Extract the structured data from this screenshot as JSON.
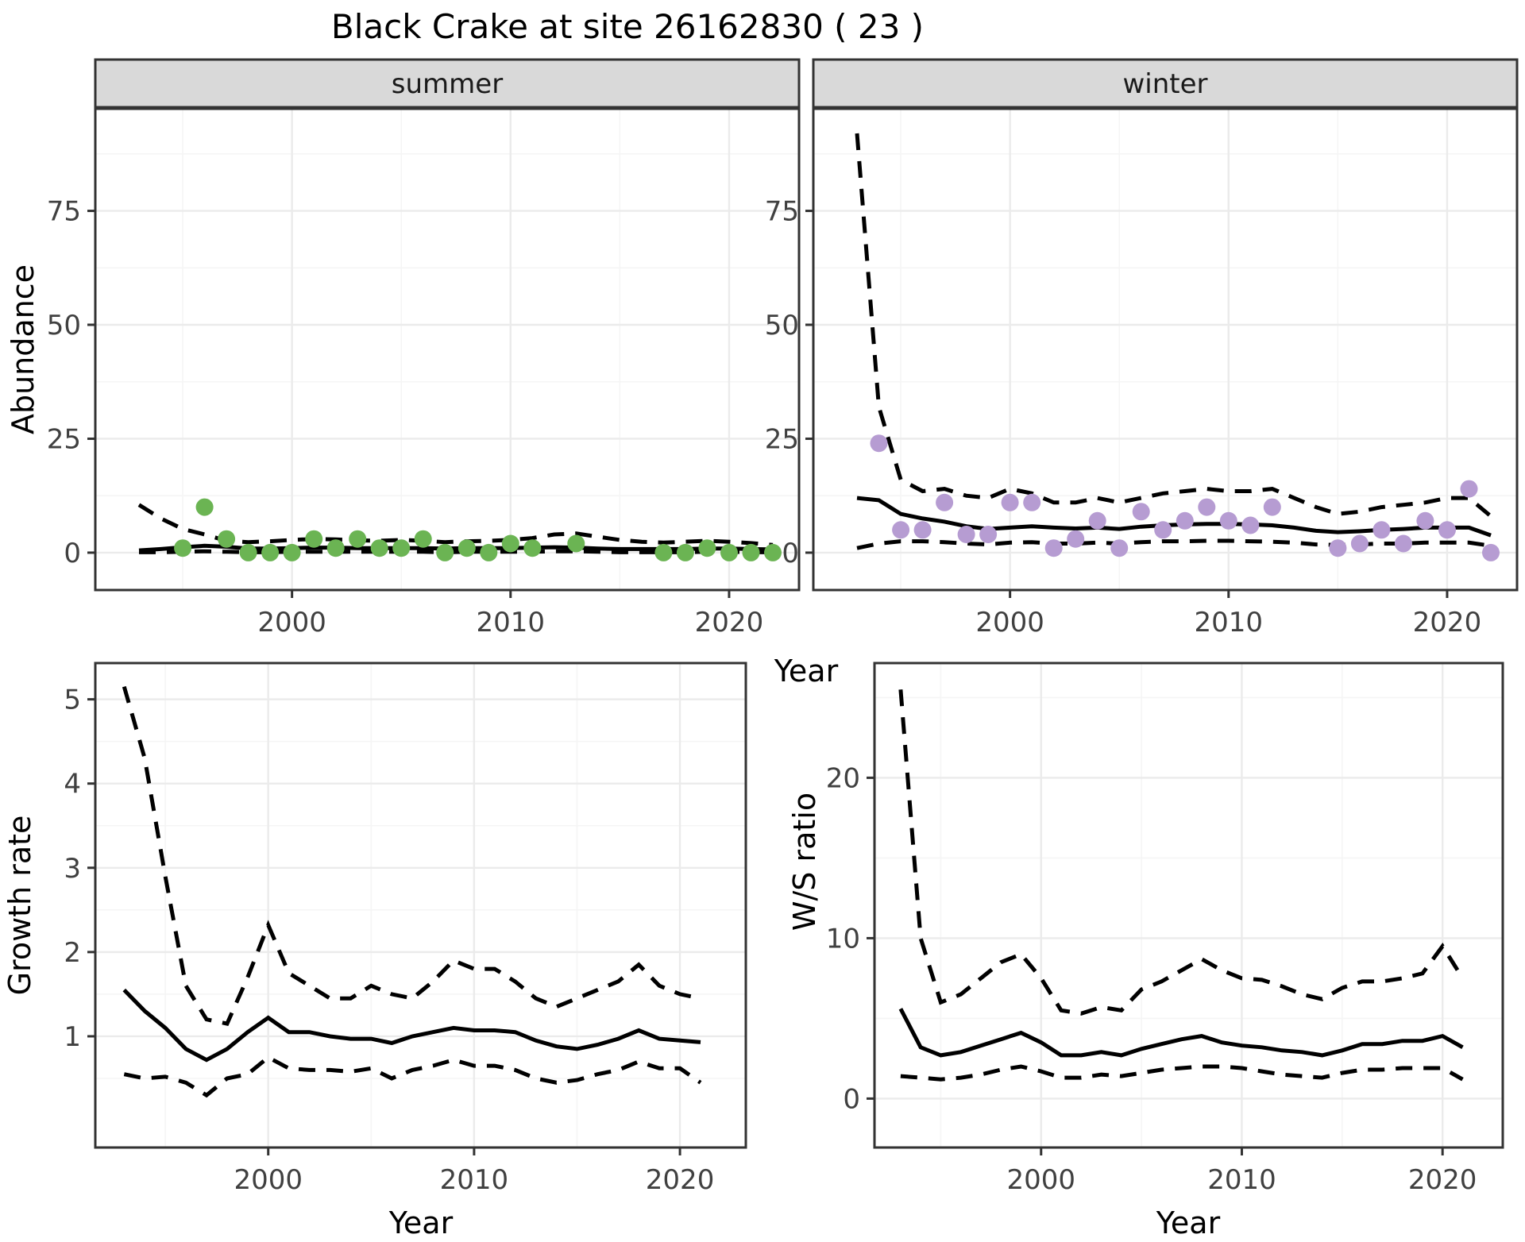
{
  "title": "Black Crake at site 26162830 ( 23 )",
  "axes": {
    "y_label_top": "Abundance",
    "x_label_top": "Year",
    "y_label_growth": "Growth rate",
    "x_label_growth": "Year",
    "y_label_ws": "W/S ratio",
    "x_label_ws": "Year"
  },
  "colors": {
    "summer_point": "#6BB453",
    "winter_point": "#B69CD2",
    "line": "#000000",
    "panel_border": "#333333",
    "strip_bg": "#D9D9D9",
    "grid_major": "#EBEBEB",
    "grid_minor": "#F5F5F5",
    "tick_text": "#404040"
  },
  "chart_data": [
    {
      "id": "summer",
      "type": "line+scatter",
      "strip_label": "summer",
      "xlabel": "Year",
      "ylabel": "Abundance",
      "xlim": [
        1991.0,
        2023.2
      ],
      "ylim": [
        -8.2,
        97.4
      ],
      "xticks": {
        "values": [
          2000,
          2010,
          2020
        ],
        "labels": [
          "2000",
          "2010",
          "2020"
        ]
      },
      "xminor": [
        1995,
        2005,
        2015
      ],
      "yticks": {
        "values": [
          0,
          25,
          50,
          75
        ],
        "labels": [
          "0",
          "25",
          "50",
          "75"
        ]
      },
      "yminor": [
        12.5,
        37.5,
        62.5,
        87.5
      ],
      "series": [
        {
          "name": "mean",
          "style": "solid",
          "x": [
            1993,
            1994,
            1995,
            1996,
            1997,
            1998,
            1999,
            2000,
            2001,
            2002,
            2003,
            2004,
            2005,
            2006,
            2007,
            2008,
            2009,
            2010,
            2011,
            2012,
            2013,
            2014,
            2015,
            2016,
            2017,
            2018,
            2019,
            2020,
            2021,
            2022
          ],
          "y": [
            0.5,
            0.8,
            1.2,
            1.5,
            1.3,
            0.9,
            0.9,
            1.0,
            1.1,
            1.1,
            1.0,
            1.0,
            1.0,
            1.0,
            0.9,
            1.0,
            1.0,
            1.0,
            1.1,
            1.2,
            1.1,
            0.9,
            0.8,
            0.8,
            0.8,
            0.8,
            0.9,
            0.9,
            0.8,
            0.7
          ]
        },
        {
          "name": "upper_ci",
          "style": "dashed",
          "x": [
            1993,
            1994,
            1995,
            1996,
            1997,
            1998,
            1999,
            2000,
            2001,
            2002,
            2003,
            2004,
            2005,
            2006,
            2007,
            2008,
            2009,
            2010,
            2011,
            2012,
            2013,
            2014,
            2015,
            2016,
            2017,
            2018,
            2019,
            2020,
            2021,
            2022
          ],
          "y": [
            10.5,
            7.5,
            5.2,
            4.0,
            2.6,
            2.3,
            2.5,
            2.8,
            3.0,
            2.9,
            2.7,
            2.6,
            2.8,
            2.6,
            2.3,
            2.5,
            2.6,
            2.8,
            3.2,
            4.0,
            4.2,
            3.5,
            2.8,
            2.4,
            2.2,
            2.4,
            2.6,
            2.4,
            2.1,
            1.7
          ]
        },
        {
          "name": "lower_ci",
          "style": "dashed",
          "x": [
            1993,
            1994,
            1995,
            1996,
            1997,
            1998,
            1999,
            2000,
            2001,
            2002,
            2003,
            2004,
            2005,
            2006,
            2007,
            2008,
            2009,
            2010,
            2011,
            2012,
            2013,
            2014,
            2015,
            2016,
            2017,
            2018,
            2019,
            2020,
            2021,
            2022
          ],
          "y": [
            0.1,
            0.1,
            0.2,
            0.3,
            0.2,
            0.1,
            0.1,
            0.2,
            0.2,
            0.2,
            0.2,
            0.2,
            0.2,
            0.2,
            0.1,
            0.2,
            0.2,
            0.2,
            0.2,
            0.3,
            0.3,
            0.2,
            0.1,
            0.1,
            0.1,
            0.1,
            0.2,
            0.2,
            0.1,
            0.1
          ]
        }
      ],
      "points": {
        "color_key": "summer_point",
        "x": [
          1995,
          1996,
          1997,
          1998,
          1999,
          2000,
          2001,
          2002,
          2003,
          2004,
          2005,
          2006,
          2007,
          2008,
          2009,
          2010,
          2011,
          2013,
          2017,
          2018,
          2019,
          2020,
          2021,
          2022
        ],
        "y": [
          1,
          10,
          3,
          0,
          0,
          0,
          3,
          1,
          3,
          1,
          1,
          3,
          0,
          1,
          0,
          2,
          1,
          2,
          0,
          0,
          1,
          0,
          0,
          0
        ]
      }
    },
    {
      "id": "winter",
      "type": "line+scatter",
      "strip_label": "winter",
      "xlabel": "Year",
      "ylabel": "Abundance",
      "xlim": [
        1991.0,
        2023.2
      ],
      "ylim": [
        -8.2,
        97.4
      ],
      "xticks": {
        "values": [
          2000,
          2010,
          2020
        ],
        "labels": [
          "2000",
          "2010",
          "2020"
        ]
      },
      "xminor": [
        1995,
        2005,
        2015
      ],
      "yticks": {
        "values": [
          0,
          25,
          50,
          75
        ],
        "labels": [
          "0",
          "25",
          "50",
          "75"
        ]
      },
      "yminor": [
        12.5,
        37.5,
        62.5,
        87.5
      ],
      "series": [
        {
          "name": "mean",
          "style": "solid",
          "x": [
            1993,
            1994,
            1995,
            1996,
            1997,
            1998,
            1999,
            2000,
            2001,
            2002,
            2003,
            2004,
            2005,
            2006,
            2007,
            2008,
            2009,
            2010,
            2011,
            2012,
            2013,
            2014,
            2015,
            2016,
            2017,
            2018,
            2019,
            2020,
            2021,
            2022
          ],
          "y": [
            12.0,
            11.5,
            8.5,
            7.5,
            6.8,
            5.8,
            5.2,
            5.5,
            5.8,
            5.5,
            5.3,
            5.5,
            5.2,
            5.7,
            6.0,
            6.2,
            6.3,
            6.3,
            6.2,
            6.0,
            5.5,
            4.8,
            4.5,
            4.7,
            5.0,
            5.2,
            5.5,
            5.5,
            5.5,
            3.8
          ]
        },
        {
          "name": "upper_ci",
          "style": "dashed",
          "x": [
            1993,
            1994,
            1995,
            1996,
            1997,
            1998,
            1999,
            2000,
            2001,
            2002,
            2003,
            2004,
            2005,
            2006,
            2007,
            2008,
            2009,
            2010,
            2011,
            2012,
            2013,
            2014,
            2015,
            2016,
            2017,
            2018,
            2019,
            2020,
            2021,
            2022
          ],
          "y": [
            92,
            32,
            16,
            13.5,
            14,
            12.5,
            12,
            14,
            13,
            11,
            11,
            12,
            11,
            12,
            13,
            13.5,
            14,
            13.5,
            13.5,
            14,
            12,
            10,
            8.5,
            9,
            10,
            10.5,
            11,
            12,
            12,
            8
          ]
        },
        {
          "name": "lower_ci",
          "style": "dashed",
          "x": [
            1993,
            1994,
            1995,
            1996,
            1997,
            1998,
            1999,
            2000,
            2001,
            2002,
            2003,
            2004,
            2005,
            2006,
            2007,
            2008,
            2009,
            2010,
            2011,
            2012,
            2013,
            2014,
            2015,
            2016,
            2017,
            2018,
            2019,
            2020,
            2021,
            2022
          ],
          "y": [
            1.0,
            2.0,
            2.5,
            2.5,
            2.3,
            2.0,
            1.8,
            2.2,
            2.3,
            2.0,
            2.0,
            2.2,
            2.0,
            2.3,
            2.5,
            2.5,
            2.6,
            2.6,
            2.5,
            2.4,
            2.2,
            1.8,
            1.7,
            1.8,
            2.0,
            2.0,
            2.2,
            2.2,
            2.2,
            1.5
          ]
        }
      ],
      "points": {
        "color_key": "winter_point",
        "x": [
          1994,
          1995,
          1996,
          1997,
          1998,
          1999,
          2000,
          2001,
          2002,
          2003,
          2004,
          2005,
          2006,
          2007,
          2008,
          2009,
          2010,
          2011,
          2012,
          2015,
          2016,
          2017,
          2018,
          2019,
          2020,
          2021,
          2022
        ],
        "y": [
          24,
          5,
          5,
          11,
          4,
          4,
          11,
          11,
          1,
          3,
          7,
          1,
          9,
          5,
          7,
          10,
          7,
          6,
          10,
          1,
          2,
          5,
          2,
          7,
          5,
          14,
          0
        ]
      }
    },
    {
      "id": "growth",
      "type": "line",
      "xlabel": "Year",
      "ylabel": "Growth rate",
      "xlim": [
        1991.6,
        2023.2
      ],
      "ylim": [
        -0.32,
        5.43
      ],
      "xticks": {
        "values": [
          2000,
          2010,
          2020
        ],
        "labels": [
          "2000",
          "2010",
          "2020"
        ]
      },
      "xminor": [
        1995,
        2005,
        2015
      ],
      "yticks": {
        "values": [
          1,
          2,
          3,
          4,
          5
        ],
        "labels": [
          "1",
          "2",
          "3",
          "4",
          "5"
        ]
      },
      "yminor": [
        0.5,
        1.5,
        2.5,
        3.5,
        4.5
      ],
      "series": [
        {
          "name": "mean",
          "style": "solid",
          "x": [
            1993,
            1994,
            1995,
            1996,
            1997,
            1998,
            1999,
            2000,
            2001,
            2002,
            2003,
            2004,
            2005,
            2006,
            2007,
            2008,
            2009,
            2010,
            2011,
            2012,
            2013,
            2014,
            2015,
            2016,
            2017,
            2018,
            2019,
            2020,
            2021
          ],
          "y": [
            1.55,
            1.3,
            1.1,
            0.85,
            0.72,
            0.85,
            1.05,
            1.22,
            1.05,
            1.05,
            1.0,
            0.97,
            0.97,
            0.92,
            1.0,
            1.05,
            1.1,
            1.07,
            1.07,
            1.05,
            0.95,
            0.88,
            0.85,
            0.9,
            0.97,
            1.07,
            0.97,
            0.95,
            0.93
          ]
        },
        {
          "name": "upper_ci",
          "style": "dashed",
          "x": [
            1993,
            1994,
            1995,
            1996,
            1997,
            1998,
            1999,
            2000,
            2001,
            2002,
            2003,
            2004,
            2005,
            2006,
            2007,
            2008,
            2009,
            2010,
            2011,
            2012,
            2013,
            2014,
            2015,
            2016,
            2017,
            2018,
            2019,
            2020,
            2021
          ],
          "y": [
            5.15,
            4.3,
            2.9,
            1.6,
            1.2,
            1.15,
            1.7,
            2.32,
            1.75,
            1.6,
            1.45,
            1.45,
            1.6,
            1.5,
            1.45,
            1.65,
            1.9,
            1.8,
            1.8,
            1.65,
            1.45,
            1.35,
            1.45,
            1.55,
            1.65,
            1.85,
            1.6,
            1.5,
            1.45
          ]
        },
        {
          "name": "lower_ci",
          "style": "dashed",
          "x": [
            1993,
            1994,
            1995,
            1996,
            1997,
            1998,
            1999,
            2000,
            2001,
            2002,
            2003,
            2004,
            2005,
            2006,
            2007,
            2008,
            2009,
            2010,
            2011,
            2012,
            2013,
            2014,
            2015,
            2016,
            2017,
            2018,
            2019,
            2020,
            2021
          ],
          "y": [
            0.55,
            0.5,
            0.52,
            0.45,
            0.3,
            0.5,
            0.55,
            0.75,
            0.62,
            0.6,
            0.6,
            0.58,
            0.62,
            0.5,
            0.6,
            0.65,
            0.72,
            0.65,
            0.65,
            0.6,
            0.5,
            0.45,
            0.48,
            0.55,
            0.6,
            0.7,
            0.62,
            0.62,
            0.45
          ]
        }
      ]
    },
    {
      "id": "ws",
      "type": "line",
      "xlabel": "Year",
      "ylabel": "W/S ratio",
      "xlim": [
        1991.7,
        2023.0
      ],
      "ylim": [
        -3.05,
        27.15
      ],
      "xticks": {
        "values": [
          2000,
          2010,
          2020
        ],
        "labels": [
          "2000",
          "2010",
          "2020"
        ]
      },
      "xminor": [
        1995,
        2005,
        2015
      ],
      "yticks": {
        "values": [
          0,
          10,
          20
        ],
        "labels": [
          "0",
          "10",
          "20"
        ]
      },
      "yminor": [
        5,
        15,
        25
      ],
      "series": [
        {
          "name": "mean",
          "style": "solid",
          "x": [
            1993,
            1994,
            1995,
            1996,
            1997,
            1998,
            1999,
            2000,
            2001,
            2002,
            2003,
            2004,
            2005,
            2006,
            2007,
            2008,
            2009,
            2010,
            2011,
            2012,
            2013,
            2014,
            2015,
            2016,
            2017,
            2018,
            2019,
            2020,
            2021
          ],
          "y": [
            5.6,
            3.2,
            2.7,
            2.9,
            3.3,
            3.7,
            4.1,
            3.5,
            2.7,
            2.7,
            2.9,
            2.7,
            3.1,
            3.4,
            3.7,
            3.9,
            3.5,
            3.3,
            3.2,
            3.0,
            2.9,
            2.7,
            3.0,
            3.4,
            3.4,
            3.6,
            3.6,
            3.9,
            3.2
          ]
        },
        {
          "name": "upper_ci",
          "style": "dashed",
          "x": [
            1993,
            1994,
            1995,
            1996,
            1997,
            1998,
            1999,
            2000,
            2001,
            2002,
            2003,
            2004,
            2005,
            2006,
            2007,
            2008,
            2009,
            2010,
            2011,
            2012,
            2013,
            2014,
            2015,
            2016,
            2017,
            2018,
            2019,
            2020,
            2021
          ],
          "y": [
            25.5,
            10.0,
            6.0,
            6.5,
            7.5,
            8.5,
            9.0,
            7.5,
            5.5,
            5.3,
            5.7,
            5.5,
            6.8,
            7.3,
            8.0,
            8.7,
            8.0,
            7.5,
            7.4,
            7.0,
            6.5,
            6.2,
            6.9,
            7.3,
            7.3,
            7.5,
            7.8,
            9.5,
            7.5
          ]
        },
        {
          "name": "lower_ci",
          "style": "dashed",
          "x": [
            1993,
            1994,
            1995,
            1996,
            1997,
            1998,
            1999,
            2000,
            2001,
            2002,
            2003,
            2004,
            2005,
            2006,
            2007,
            2008,
            2009,
            2010,
            2011,
            2012,
            2013,
            2014,
            2015,
            2016,
            2017,
            2018,
            2019,
            2020,
            2021
          ],
          "y": [
            1.4,
            1.3,
            1.2,
            1.3,
            1.5,
            1.8,
            2.0,
            1.7,
            1.3,
            1.3,
            1.5,
            1.4,
            1.6,
            1.8,
            1.9,
            2.0,
            2.0,
            1.9,
            1.7,
            1.5,
            1.4,
            1.3,
            1.6,
            1.8,
            1.8,
            1.9,
            1.9,
            1.9,
            1.2
          ]
        }
      ]
    }
  ]
}
